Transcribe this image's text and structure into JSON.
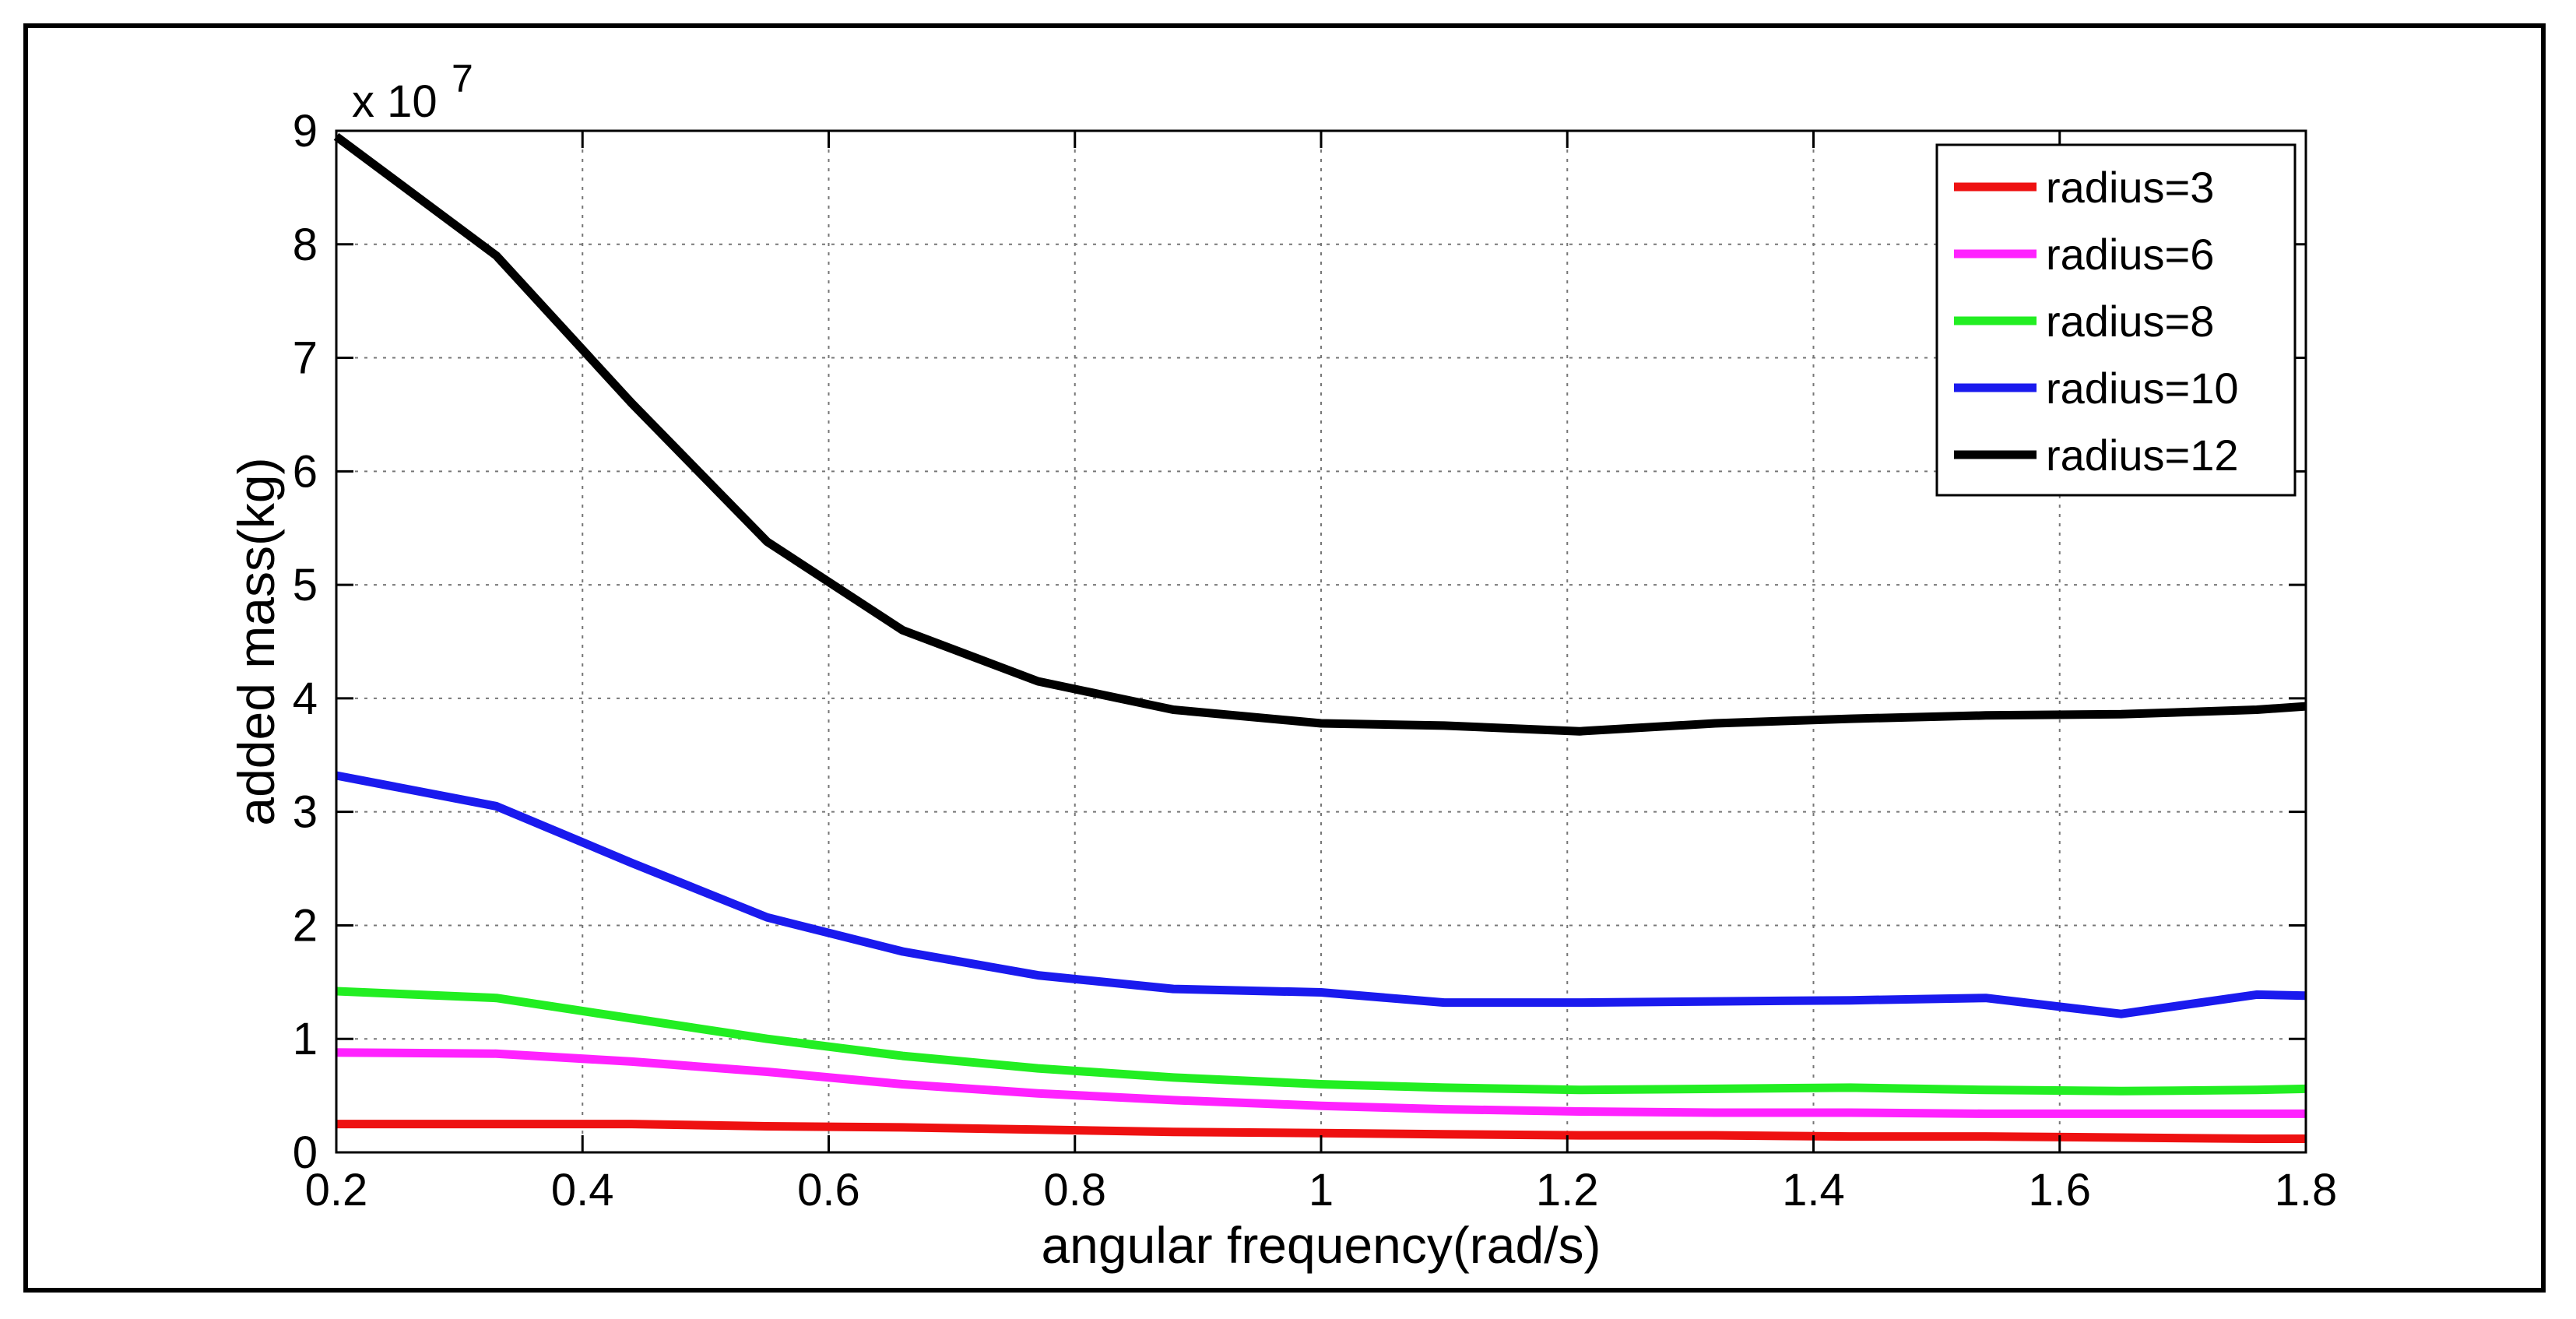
{
  "chart_data": {
    "type": "line",
    "title": "",
    "xlabel": "angular frequency(rad/s)",
    "ylabel": "added mass(kg)",
    "y_multiplier": "x 10",
    "y_multiplier_exp": "7",
    "xlim": [
      0.2,
      1.8
    ],
    "ylim": [
      0,
      9
    ],
    "grid": true,
    "legend_position": "top-right",
    "x_ticks": [
      "0.2",
      "0.4",
      "0.6",
      "0.8",
      "1",
      "1.2",
      "1.4",
      "1.6",
      "1.8"
    ],
    "y_ticks": [
      "0",
      "1",
      "2",
      "3",
      "4",
      "5",
      "6",
      "7",
      "8",
      "9"
    ],
    "series": [
      {
        "name": "radius=3",
        "color": "#ee1111",
        "x": [
          0.2,
          0.33,
          0.44,
          0.55,
          0.66,
          0.77,
          0.88,
          1.0,
          1.1,
          1.21,
          1.32,
          1.43,
          1.54,
          1.65,
          1.76,
          1.8
        ],
        "y": [
          0.25,
          0.25,
          0.25,
          0.23,
          0.22,
          0.2,
          0.18,
          0.17,
          0.16,
          0.15,
          0.15,
          0.14,
          0.14,
          0.13,
          0.12,
          0.12
        ]
      },
      {
        "name": "radius=6",
        "color": "#ff22ff",
        "x": [
          0.2,
          0.33,
          0.44,
          0.55,
          0.66,
          0.77,
          0.88,
          1.0,
          1.1,
          1.21,
          1.32,
          1.43,
          1.54,
          1.65,
          1.76,
          1.8
        ],
        "y": [
          0.88,
          0.87,
          0.8,
          0.71,
          0.6,
          0.52,
          0.46,
          0.41,
          0.38,
          0.36,
          0.35,
          0.35,
          0.34,
          0.34,
          0.34,
          0.34
        ]
      },
      {
        "name": "radius=8",
        "color": "#22ee22",
        "x": [
          0.2,
          0.33,
          0.44,
          0.55,
          0.66,
          0.77,
          0.88,
          1.0,
          1.1,
          1.21,
          1.32,
          1.43,
          1.54,
          1.65,
          1.76,
          1.8
        ],
        "y": [
          1.42,
          1.36,
          1.18,
          1.0,
          0.85,
          0.74,
          0.66,
          0.6,
          0.57,
          0.55,
          0.56,
          0.57,
          0.55,
          0.54,
          0.55,
          0.56
        ]
      },
      {
        "name": "radius=10",
        "color": "#1a1aee",
        "x": [
          0.2,
          0.33,
          0.44,
          0.55,
          0.66,
          0.77,
          0.88,
          1.0,
          1.1,
          1.21,
          1.32,
          1.43,
          1.54,
          1.65,
          1.76,
          1.8
        ],
        "y": [
          3.32,
          3.05,
          2.55,
          2.07,
          1.77,
          1.56,
          1.44,
          1.41,
          1.32,
          1.32,
          1.33,
          1.34,
          1.36,
          1.22,
          1.39,
          1.38
        ]
      },
      {
        "name": "radius=12",
        "color": "#000000",
        "x": [
          0.2,
          0.33,
          0.44,
          0.55,
          0.66,
          0.77,
          0.88,
          1.0,
          1.1,
          1.21,
          1.32,
          1.43,
          1.54,
          1.65,
          1.76,
          1.8
        ],
        "y": [
          8.95,
          7.9,
          6.6,
          5.38,
          4.6,
          4.15,
          3.9,
          3.78,
          3.76,
          3.71,
          3.78,
          3.82,
          3.85,
          3.86,
          3.9,
          3.93
        ]
      }
    ]
  }
}
